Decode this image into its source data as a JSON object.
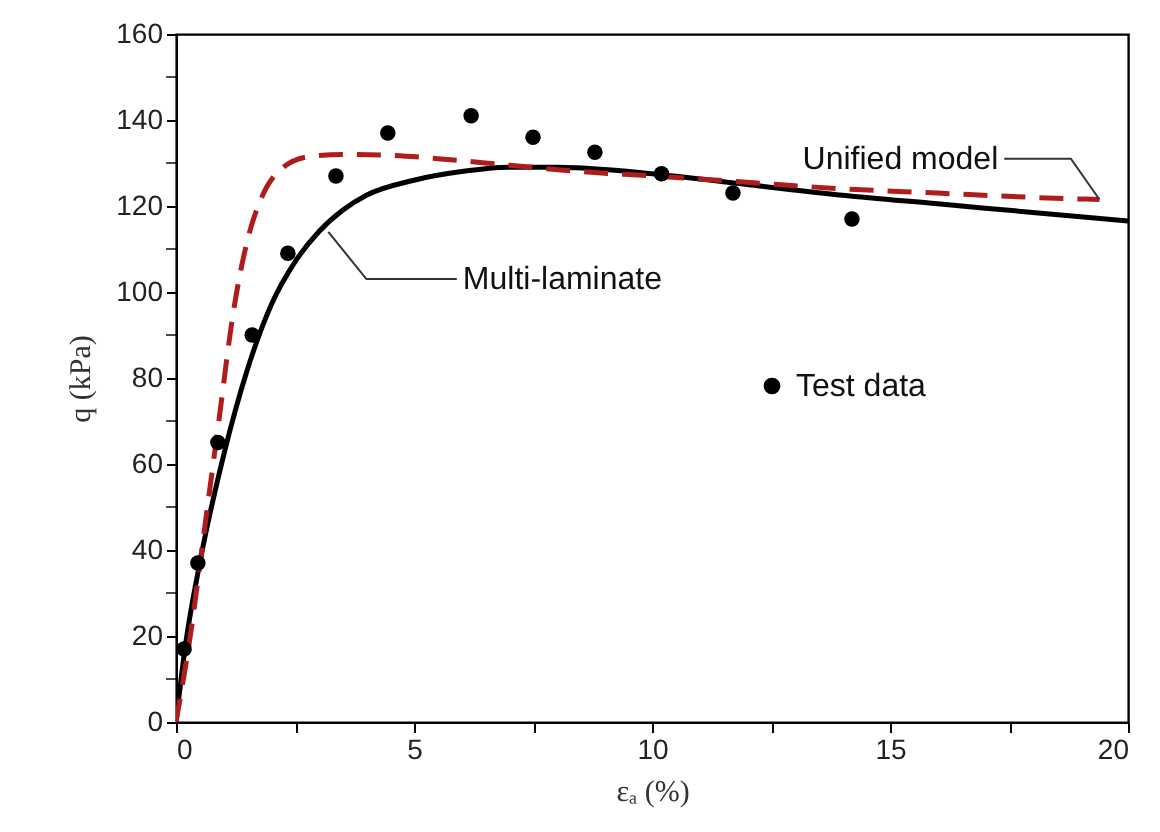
{
  "chart_data": {
    "type": "line",
    "xlabel": "εₐ (%)",
    "ylabel": "q (kPa)",
    "xlim": [
      0,
      20
    ],
    "xticks": [
      0,
      {
        "value": 2.5,
        "label": null
      },
      5,
      {
        "value": 7.5,
        "label": null
      },
      10,
      {
        "value": 12.5,
        "label": null
      },
      15,
      {
        "value": 17.5,
        "label": null
      },
      20
    ],
    "ylim": [
      0,
      160
    ],
    "yticks": [
      0,
      {
        "value": 10,
        "label": null
      },
      20,
      {
        "value": 30,
        "label": null
      },
      40,
      {
        "value": 50,
        "label": null
      },
      60,
      {
        "value": 70,
        "label": null
      },
      80,
      {
        "value": 90,
        "label": null
      },
      100,
      {
        "value": 110,
        "label": null
      },
      120,
      {
        "value": 130,
        "label": null
      },
      140,
      {
        "value": 150,
        "label": null
      },
      160
    ],
    "grid": false,
    "legend": "right",
    "series": [
      {
        "name": "Multi-laminate",
        "line_style": "solid",
        "marker": "none",
        "color": "#000000",
        "x": [
          0,
          0.2,
          0.5,
          1,
          1.5,
          2,
          2.5,
          3,
          3.5,
          4,
          5,
          6,
          7,
          8,
          9,
          10,
          12,
          14,
          16,
          18,
          20
        ],
        "values": [
          0,
          18,
          37,
          62,
          82,
          97,
          107,
          114,
          119,
          122.5,
          126,
          128,
          129,
          129,
          128.5,
          127.5,
          125,
          122.5,
          120.5,
          118.5,
          116.5
        ]
      },
      {
        "name": "Unified model",
        "line_style": "dashed",
        "marker": "none",
        "color": "#b01c1c",
        "x": [
          0,
          0.3,
          0.6,
          0.9,
          1.2,
          1.5,
          1.8,
          2.2,
          2.8,
          3.5,
          4.5,
          5.5,
          7,
          8.5,
          10,
          12,
          14,
          16,
          18,
          19.4
        ],
        "values": [
          0,
          20,
          45,
          70,
          95,
          112,
          122,
          128.5,
          131.5,
          132,
          131.8,
          131,
          129.5,
          128,
          127,
          125.5,
          124,
          123,
          122,
          121.5
        ]
      },
      {
        "name": "Test data",
        "type": "scatter",
        "marker": "circle",
        "color": "#000000",
        "x": [
          0.17,
          0.46,
          0.88,
          1.6,
          2.35,
          3.36,
          4.45,
          6.2,
          7.5,
          8.8,
          10.2,
          11.7,
          14.2
        ],
        "values": [
          17,
          37,
          65,
          90,
          109,
          127,
          137,
          141,
          136,
          132.5,
          127.5,
          123,
          117
        ]
      }
    ]
  }
}
